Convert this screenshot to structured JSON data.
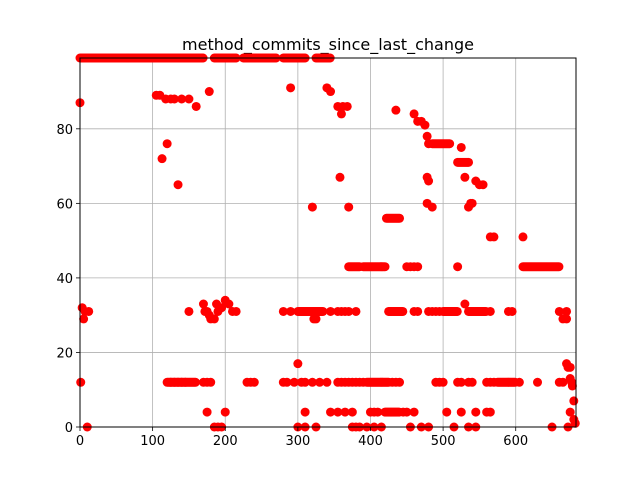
{
  "chart_data": {
    "type": "scatter",
    "title": "method_commits_since_last_change",
    "xlabel": "",
    "ylabel": "",
    "xlim": [
      0,
      683
    ],
    "ylim": [
      0,
      99
    ],
    "xticks": [
      0,
      100,
      200,
      300,
      400,
      500,
      600
    ],
    "yticks": [
      0,
      20,
      40,
      60,
      80
    ],
    "grid": true,
    "legend": "none",
    "marker_color": "#ff0000",
    "background": "#ffffff",
    "grid_color": "#b0b0b0",
    "segments": [
      [
        0,
        170,
        99
      ],
      [
        185,
        215,
        99
      ],
      [
        225,
        270,
        99
      ],
      [
        280,
        310,
        99
      ],
      [
        325,
        345,
        99
      ],
      [
        370,
        385,
        43
      ],
      [
        390,
        420,
        43
      ],
      [
        422,
        440,
        56
      ],
      [
        485,
        510,
        76
      ],
      [
        520,
        535,
        71
      ],
      [
        610,
        660,
        43
      ],
      [
        120,
        160,
        12
      ],
      [
        395,
        425,
        12
      ],
      [
        575,
        600,
        12
      ],
      [
        420,
        440,
        4
      ],
      [
        300,
        335,
        31
      ],
      [
        425,
        445,
        31
      ],
      [
        500,
        520,
        31
      ],
      [
        535,
        560,
        31
      ]
    ],
    "points": [
      [
        0,
        87
      ],
      [
        1,
        12
      ],
      [
        3,
        32
      ],
      [
        5,
        29
      ],
      [
        7,
        31
      ],
      [
        10,
        0
      ],
      [
        12,
        31
      ],
      [
        105,
        89
      ],
      [
        110,
        89
      ],
      [
        113,
        72
      ],
      [
        118,
        88
      ],
      [
        120,
        76
      ],
      [
        125,
        88
      ],
      [
        130,
        88
      ],
      [
        135,
        65
      ],
      [
        140,
        88
      ],
      [
        150,
        88
      ],
      [
        160,
        86
      ],
      [
        178,
        90
      ],
      [
        290,
        91
      ],
      [
        340,
        91
      ],
      [
        345,
        90
      ],
      [
        355,
        86
      ],
      [
        358,
        67
      ],
      [
        360,
        84
      ],
      [
        362,
        86
      ],
      [
        368,
        86
      ],
      [
        370,
        59
      ],
      [
        320,
        59
      ],
      [
        435,
        85
      ],
      [
        460,
        84
      ],
      [
        465,
        82
      ],
      [
        470,
        82
      ],
      [
        475,
        81
      ],
      [
        478,
        78
      ],
      [
        480,
        76
      ],
      [
        478,
        67
      ],
      [
        480,
        66
      ],
      [
        478,
        60
      ],
      [
        485,
        59
      ],
      [
        525,
        75
      ],
      [
        530,
        67
      ],
      [
        535,
        59
      ],
      [
        538,
        60
      ],
      [
        540,
        60
      ],
      [
        545,
        66
      ],
      [
        550,
        65
      ],
      [
        555,
        65
      ],
      [
        565,
        51
      ],
      [
        570,
        51
      ],
      [
        610,
        51
      ],
      [
        520,
        43
      ],
      [
        450,
        43
      ],
      [
        455,
        43
      ],
      [
        460,
        43
      ],
      [
        465,
        43
      ],
      [
        150,
        31
      ],
      [
        170,
        33
      ],
      [
        172,
        31
      ],
      [
        175,
        31
      ],
      [
        178,
        30
      ],
      [
        180,
        29
      ],
      [
        185,
        29
      ],
      [
        188,
        33
      ],
      [
        190,
        31
      ],
      [
        195,
        32
      ],
      [
        200,
        34
      ],
      [
        205,
        33
      ],
      [
        210,
        31
      ],
      [
        215,
        31
      ],
      [
        280,
        31
      ],
      [
        290,
        31
      ],
      [
        322,
        29
      ],
      [
        325,
        29
      ],
      [
        345,
        31
      ],
      [
        355,
        31
      ],
      [
        360,
        31
      ],
      [
        365,
        31
      ],
      [
        370,
        31
      ],
      [
        380,
        31
      ],
      [
        460,
        31
      ],
      [
        465,
        31
      ],
      [
        480,
        31
      ],
      [
        485,
        31
      ],
      [
        490,
        31
      ],
      [
        495,
        31
      ],
      [
        530,
        33
      ],
      [
        565,
        31
      ],
      [
        590,
        31
      ],
      [
        595,
        31
      ],
      [
        660,
        31
      ],
      [
        665,
        29
      ],
      [
        670,
        29
      ],
      [
        670,
        31
      ],
      [
        125,
        12
      ],
      [
        130,
        12
      ],
      [
        135,
        12
      ],
      [
        140,
        12
      ],
      [
        145,
        12
      ],
      [
        170,
        12
      ],
      [
        175,
        12
      ],
      [
        180,
        12
      ],
      [
        230,
        12
      ],
      [
        235,
        12
      ],
      [
        240,
        12
      ],
      [
        280,
        12
      ],
      [
        285,
        12
      ],
      [
        295,
        12
      ],
      [
        300,
        17
      ],
      [
        305,
        12
      ],
      [
        310,
        12
      ],
      [
        320,
        12
      ],
      [
        330,
        12
      ],
      [
        340,
        12
      ],
      [
        355,
        12
      ],
      [
        360,
        12
      ],
      [
        365,
        12
      ],
      [
        370,
        12
      ],
      [
        375,
        12
      ],
      [
        380,
        12
      ],
      [
        385,
        12
      ],
      [
        390,
        12
      ],
      [
        430,
        12
      ],
      [
        435,
        12
      ],
      [
        440,
        12
      ],
      [
        490,
        12
      ],
      [
        495,
        12
      ],
      [
        500,
        12
      ],
      [
        520,
        12
      ],
      [
        525,
        12
      ],
      [
        535,
        12
      ],
      [
        540,
        12
      ],
      [
        560,
        12
      ],
      [
        565,
        12
      ],
      [
        570,
        12
      ],
      [
        605,
        12
      ],
      [
        630,
        12
      ],
      [
        660,
        12
      ],
      [
        665,
        12
      ],
      [
        670,
        17
      ],
      [
        672,
        16
      ],
      [
        675,
        16
      ],
      [
        675,
        13
      ],
      [
        677,
        12
      ],
      [
        678,
        11
      ],
      [
        680,
        7
      ],
      [
        175,
        4
      ],
      [
        200,
        4
      ],
      [
        310,
        4
      ],
      [
        345,
        4
      ],
      [
        355,
        4
      ],
      [
        365,
        4
      ],
      [
        375,
        4
      ],
      [
        400,
        4
      ],
      [
        405,
        4
      ],
      [
        410,
        4
      ],
      [
        445,
        4
      ],
      [
        450,
        4
      ],
      [
        460,
        4
      ],
      [
        505,
        4
      ],
      [
        525,
        4
      ],
      [
        545,
        4
      ],
      [
        560,
        4
      ],
      [
        565,
        4
      ],
      [
        675,
        4
      ],
      [
        680,
        2
      ],
      [
        185,
        0
      ],
      [
        190,
        0
      ],
      [
        195,
        0
      ],
      [
        300,
        0
      ],
      [
        310,
        0
      ],
      [
        325,
        0
      ],
      [
        375,
        0
      ],
      [
        380,
        0
      ],
      [
        385,
        0
      ],
      [
        395,
        0
      ],
      [
        405,
        0
      ],
      [
        415,
        0
      ],
      [
        455,
        0
      ],
      [
        470,
        0
      ],
      [
        480,
        0
      ],
      [
        515,
        0
      ],
      [
        535,
        0
      ],
      [
        545,
        0
      ],
      [
        650,
        0
      ],
      [
        672,
        0
      ],
      [
        682,
        1
      ]
    ]
  }
}
